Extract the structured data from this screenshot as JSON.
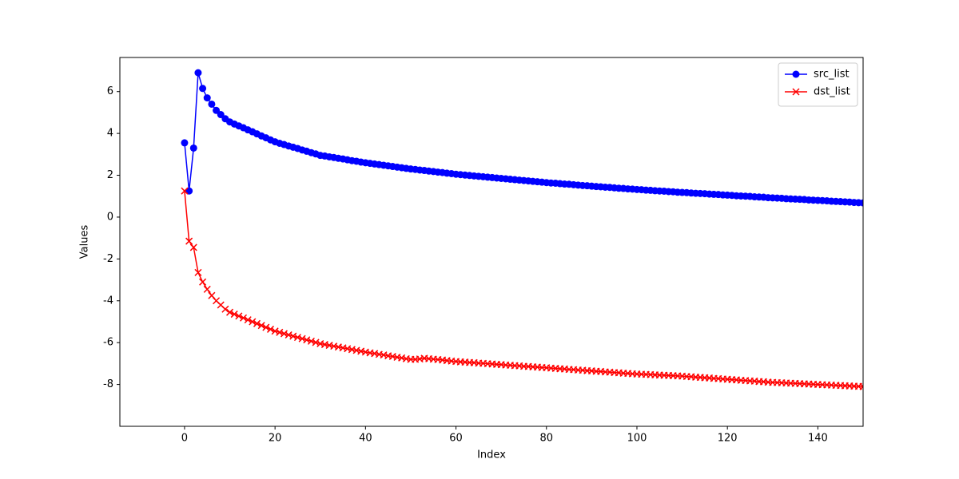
{
  "chart_data": {
    "type": "line",
    "x_label": "Index",
    "y_label": "Values",
    "x": [
      0,
      1,
      2,
      3,
      4,
      5,
      6,
      7,
      8,
      9,
      10,
      11,
      12,
      13,
      14,
      15,
      16,
      17,
      18,
      19,
      20,
      21,
      22,
      23,
      24,
      25,
      26,
      27,
      28,
      29,
      30,
      31,
      32,
      33,
      34,
      35,
      36,
      37,
      38,
      39,
      40,
      41,
      42,
      43,
      44,
      45,
      46,
      47,
      48,
      49,
      50,
      51,
      52,
      53,
      54,
      55,
      56,
      57,
      58,
      59,
      60,
      61,
      62,
      63,
      64,
      65,
      66,
      67,
      68,
      69,
      70,
      71,
      72,
      73,
      74,
      75,
      76,
      77,
      78,
      79,
      80,
      81,
      82,
      83,
      84,
      85,
      86,
      87,
      88,
      89,
      90,
      91,
      92,
      93,
      94,
      95,
      96,
      97,
      98,
      99,
      100,
      101,
      102,
      103,
      104,
      105,
      106,
      107,
      108,
      109,
      110,
      111,
      112,
      113,
      114,
      115,
      116,
      117,
      118,
      119,
      120,
      121,
      122,
      123,
      124,
      125,
      126,
      127,
      128,
      129,
      130,
      131,
      132,
      133,
      134,
      135,
      136,
      137,
      138,
      139,
      140,
      141,
      142,
      143,
      144,
      145,
      146,
      147,
      148,
      149,
      150
    ],
    "series": [
      {
        "name": "src_list",
        "color": "#0000ff",
        "marker": "o",
        "values": [
          3.55,
          1.25,
          3.3,
          6.9,
          6.15,
          5.7,
          5.4,
          5.1,
          4.9,
          4.7,
          4.55,
          4.45,
          4.36,
          4.27,
          4.17,
          4.08,
          3.98,
          3.88,
          3.79,
          3.69,
          3.6,
          3.53,
          3.47,
          3.4,
          3.34,
          3.28,
          3.21,
          3.15,
          3.08,
          3.02,
          2.95,
          2.92,
          2.88,
          2.85,
          2.81,
          2.78,
          2.74,
          2.7,
          2.67,
          2.63,
          2.6,
          2.57,
          2.54,
          2.51,
          2.48,
          2.45,
          2.42,
          2.39,
          2.36,
          2.33,
          2.3,
          2.28,
          2.25,
          2.23,
          2.2,
          2.18,
          2.15,
          2.13,
          2.1,
          2.08,
          2.05,
          2.03,
          2.01,
          1.99,
          1.97,
          1.95,
          1.93,
          1.91,
          1.89,
          1.87,
          1.85,
          1.83,
          1.81,
          1.79,
          1.77,
          1.75,
          1.73,
          1.71,
          1.69,
          1.67,
          1.65,
          1.63,
          1.62,
          1.6,
          1.58,
          1.57,
          1.55,
          1.53,
          1.51,
          1.5,
          1.48,
          1.46,
          1.45,
          1.43,
          1.42,
          1.4,
          1.38,
          1.37,
          1.35,
          1.34,
          1.32,
          1.31,
          1.29,
          1.28,
          1.26,
          1.25,
          1.24,
          1.22,
          1.21,
          1.19,
          1.18,
          1.17,
          1.15,
          1.14,
          1.13,
          1.12,
          1.1,
          1.09,
          1.08,
          1.06,
          1.05,
          1.04,
          1.02,
          1.01,
          1.0,
          0.99,
          0.97,
          0.96,
          0.95,
          0.93,
          0.92,
          0.91,
          0.9,
          0.88,
          0.87,
          0.86,
          0.85,
          0.84,
          0.82,
          0.81,
          0.8,
          0.79,
          0.78,
          0.76,
          0.75,
          0.74,
          0.73,
          0.72,
          0.7,
          0.69,
          0.68
        ]
      },
      {
        "name": "dst_list",
        "color": "#ff0000",
        "marker": "x",
        "values": [
          1.25,
          -1.15,
          -1.45,
          -2.65,
          -3.1,
          -3.45,
          -3.75,
          -4.0,
          -4.2,
          -4.4,
          -4.55,
          -4.64,
          -4.73,
          -4.82,
          -4.91,
          -5.0,
          -5.09,
          -5.18,
          -5.27,
          -5.36,
          -5.45,
          -5.51,
          -5.57,
          -5.63,
          -5.69,
          -5.75,
          -5.81,
          -5.87,
          -5.93,
          -5.99,
          -6.05,
          -6.09,
          -6.13,
          -6.17,
          -6.21,
          -6.25,
          -6.29,
          -6.33,
          -6.37,
          -6.41,
          -6.45,
          -6.49,
          -6.52,
          -6.56,
          -6.59,
          -6.63,
          -6.66,
          -6.7,
          -6.73,
          -6.77,
          -6.8,
          -6.8,
          -6.78,
          -6.75,
          -6.77,
          -6.79,
          -6.81,
          -6.83,
          -6.86,
          -6.88,
          -6.9,
          -6.92,
          -6.93,
          -6.95,
          -6.96,
          -6.98,
          -6.99,
          -7.01,
          -7.02,
          -7.04,
          -7.05,
          -7.07,
          -7.08,
          -7.1,
          -7.11,
          -7.13,
          -7.14,
          -7.16,
          -7.17,
          -7.19,
          -7.2,
          -7.22,
          -7.23,
          -7.25,
          -7.26,
          -7.28,
          -7.29,
          -7.31,
          -7.32,
          -7.34,
          -7.35,
          -7.37,
          -7.38,
          -7.4,
          -7.41,
          -7.43,
          -7.44,
          -7.46,
          -7.47,
          -7.49,
          -7.5,
          -7.51,
          -7.52,
          -7.53,
          -7.54,
          -7.55,
          -7.56,
          -7.57,
          -7.58,
          -7.59,
          -7.6,
          -7.62,
          -7.63,
          -7.65,
          -7.66,
          -7.68,
          -7.69,
          -7.71,
          -7.72,
          -7.74,
          -7.75,
          -7.77,
          -7.78,
          -7.8,
          -7.81,
          -7.83,
          -7.84,
          -7.86,
          -7.87,
          -7.89,
          -7.9,
          -7.91,
          -7.92,
          -7.93,
          -7.94,
          -7.95,
          -7.96,
          -7.97,
          -7.98,
          -7.99,
          -8.0,
          -8.01,
          -8.02,
          -8.03,
          -8.04,
          -8.05,
          -8.06,
          -8.07,
          -8.08,
          -8.09,
          -8.1
        ]
      }
    ],
    "xlim": [
      -14.3,
      150
    ],
    "xticks": [
      0,
      20,
      40,
      60,
      80,
      100,
      120,
      140
    ],
    "ylim": [
      -10,
      7.63
    ],
    "yticks": [
      -8,
      -6,
      -4,
      -2,
      0,
      2,
      4,
      6
    ],
    "grid": false,
    "legend": "upper right"
  }
}
